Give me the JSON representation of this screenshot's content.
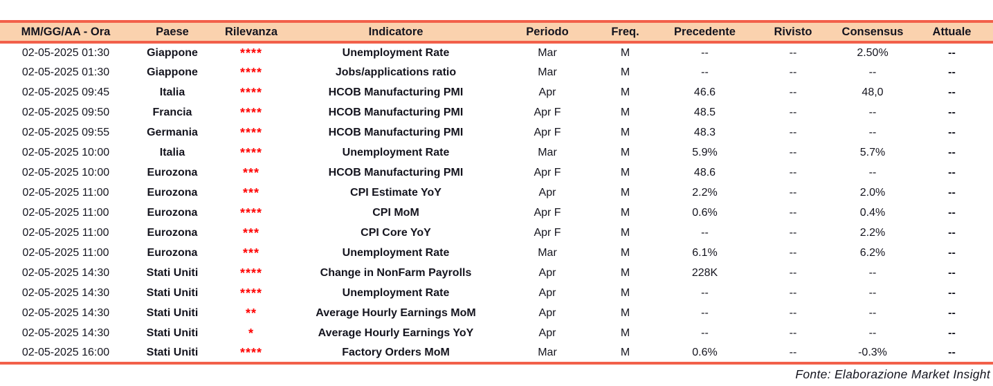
{
  "table": {
    "columns": [
      "MM/GG/AA - Ora",
      "Paese",
      "Rilevanza",
      "Indicatore",
      "Periodo",
      "Freq.",
      "Precedente",
      "Rivisto",
      "Consensus",
      "Attuale"
    ],
    "rows": [
      {
        "datetime": "02-05-2025 01:30",
        "country": "Giappone",
        "relevance": "****",
        "indicator": "Unemployment Rate",
        "period": "Mar",
        "freq": "M",
        "previous": "--",
        "revised": "--",
        "consensus": "2.50%",
        "actual": "--"
      },
      {
        "datetime": "02-05-2025 01:30",
        "country": "Giappone",
        "relevance": "****",
        "indicator": "Jobs/applications ratio",
        "period": "Mar",
        "freq": "M",
        "previous": "--",
        "revised": "--",
        "consensus": "--",
        "actual": "--"
      },
      {
        "datetime": "02-05-2025 09:45",
        "country": "Italia",
        "relevance": "****",
        "indicator": "HCOB Manufacturing PMI",
        "period": "Apr",
        "freq": "M",
        "previous": "46.6",
        "revised": "--",
        "consensus": "48,0",
        "actual": "--"
      },
      {
        "datetime": "02-05-2025 09:50",
        "country": "Francia",
        "relevance": "****",
        "indicator": "HCOB Manufacturing PMI",
        "period": "Apr F",
        "freq": "M",
        "previous": "48.5",
        "revised": "--",
        "consensus": "--",
        "actual": "--"
      },
      {
        "datetime": "02-05-2025 09:55",
        "country": "Germania",
        "relevance": "****",
        "indicator": "HCOB Manufacturing PMI",
        "period": "Apr F",
        "freq": "M",
        "previous": "48.3",
        "revised": "--",
        "consensus": "--",
        "actual": "--"
      },
      {
        "datetime": "02-05-2025 10:00",
        "country": "Italia",
        "relevance": "****",
        "indicator": "Unemployment Rate",
        "period": "Mar",
        "freq": "M",
        "previous": "5.9%",
        "revised": "--",
        "consensus": "5.7%",
        "actual": "--"
      },
      {
        "datetime": "02-05-2025 10:00",
        "country": "Eurozona",
        "relevance": "***",
        "indicator": "HCOB Manufacturing PMI",
        "period": "Apr F",
        "freq": "M",
        "previous": "48.6",
        "revised": "--",
        "consensus": "--",
        "actual": "--"
      },
      {
        "datetime": "02-05-2025 11:00",
        "country": "Eurozona",
        "relevance": "***",
        "indicator": "CPI Estimate YoY",
        "period": "Apr",
        "freq": "M",
        "previous": "2.2%",
        "revised": "--",
        "consensus": "2.0%",
        "actual": "--"
      },
      {
        "datetime": "02-05-2025 11:00",
        "country": "Eurozona",
        "relevance": "****",
        "indicator": "CPI MoM",
        "period": "Apr F",
        "freq": "M",
        "previous": "0.6%",
        "revised": "--",
        "consensus": "0.4%",
        "actual": "--"
      },
      {
        "datetime": "02-05-2025 11:00",
        "country": "Eurozona",
        "relevance": "***",
        "indicator": "CPI Core YoY",
        "period": "Apr F",
        "freq": "M",
        "previous": "--",
        "revised": "--",
        "consensus": "2.2%",
        "actual": "--"
      },
      {
        "datetime": "02-05-2025 11:00",
        "country": "Eurozona",
        "relevance": "***",
        "indicator": "Unemployment Rate",
        "period": "Mar",
        "freq": "M",
        "previous": "6.1%",
        "revised": "--",
        "consensus": "6.2%",
        "actual": "--"
      },
      {
        "datetime": "02-05-2025 14:30",
        "country": "Stati Uniti",
        "relevance": "****",
        "indicator": "Change in NonFarm Payrolls",
        "period": "Apr",
        "freq": "M",
        "previous": "228K",
        "revised": "--",
        "consensus": "--",
        "actual": "--"
      },
      {
        "datetime": "02-05-2025 14:30",
        "country": "Stati Uniti",
        "relevance": "****",
        "indicator": "Unemployment Rate",
        "period": "Apr",
        "freq": "M",
        "previous": "--",
        "revised": "--",
        "consensus": "--",
        "actual": "--"
      },
      {
        "datetime": "02-05-2025 14:30",
        "country": "Stati Uniti",
        "relevance": "**",
        "indicator": "Average Hourly Earnings MoM",
        "period": "Apr",
        "freq": "M",
        "previous": "--",
        "revised": "--",
        "consensus": "--",
        "actual": "--"
      },
      {
        "datetime": "02-05-2025 14:30",
        "country": "Stati Uniti",
        "relevance": "*",
        "indicator": "Average Hourly Earnings YoY",
        "period": "Apr",
        "freq": "M",
        "previous": "--",
        "revised": "--",
        "consensus": "--",
        "actual": "--"
      },
      {
        "datetime": "02-05-2025 16:00",
        "country": "Stati Uniti",
        "relevance": "****",
        "indicator": "Factory Orders MoM",
        "period": "Mar",
        "freq": "M",
        "previous": "0.6%",
        "revised": "--",
        "consensus": "-0.3%",
        "actual": "--"
      }
    ]
  },
  "footer": {
    "source_label": "Fonte: Elaborazione Market Insight"
  },
  "colors": {
    "accent": "#F2604A",
    "header_bg": "#FAD2AE",
    "relevance_red": "#FF0000",
    "text": "#14141E"
  }
}
